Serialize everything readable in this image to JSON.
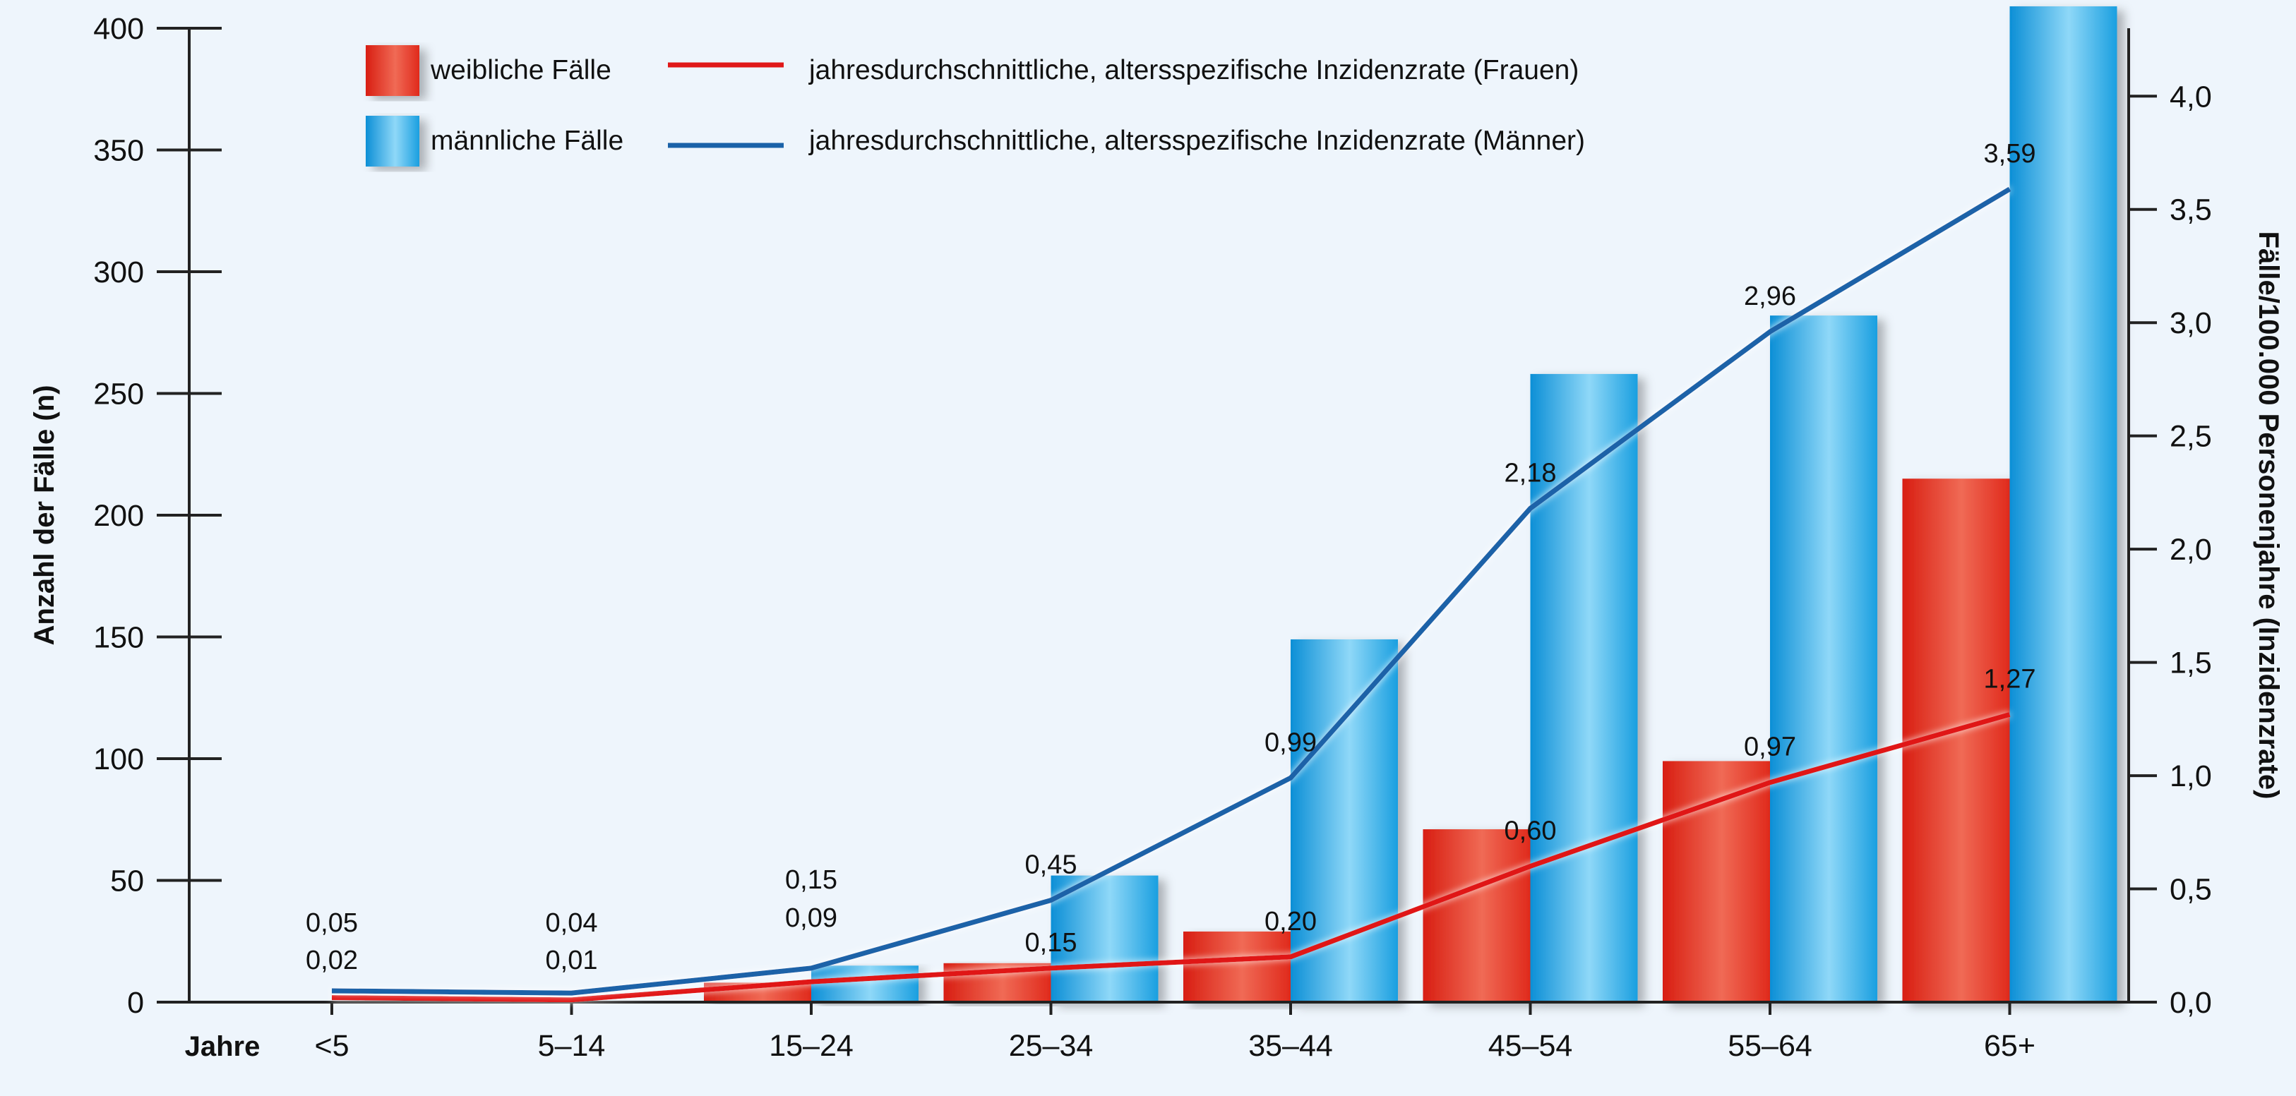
{
  "chart_data": {
    "type": "bar",
    "xlabel": "Jahre",
    "ylabel": "Anzahl der Fälle (n)",
    "ylabel_right": "Fälle/100.000 Personenjahre (Inzidenzrate)",
    "categories": [
      "<5",
      "5–14",
      "15–24",
      "25–34",
      "35–44",
      "45–54",
      "55–64",
      "65+"
    ],
    "ylim": [
      0,
      400
    ],
    "yticks": [
      "0",
      "50",
      "100",
      "150",
      "200",
      "250",
      "300",
      "350",
      "400"
    ],
    "ylim_right": [
      0,
      4.3
    ],
    "yticks_right": [
      "0,0",
      "0,5",
      "1,0",
      "1,5",
      "2,0",
      "2,5",
      "3,0",
      "3,5",
      "4,0"
    ],
    "bar_series": [
      {
        "name": "weibliche Fälle",
        "color": "#e32a1f",
        "values": [
          0,
          0,
          8,
          16,
          29,
          71,
          99,
          215
        ]
      },
      {
        "name": "männliche Fälle",
        "color": "#1aa3e0",
        "values": [
          0,
          0,
          15,
          52,
          149,
          258,
          282,
          409
        ]
      }
    ],
    "line_series": [
      {
        "name": "jahresdurchschnittliche, altersspezifische Inzidenzrate (Frauen)",
        "color": "#e01818",
        "values": [
          0.02,
          0.01,
          0.09,
          0.15,
          0.2,
          0.6,
          0.97,
          1.27
        ],
        "labels": [
          "0,02",
          "0,01",
          "0,09",
          "0,15",
          "0,20",
          "0,60",
          "0,97",
          "1,27"
        ]
      },
      {
        "name": "jahresdurchschnittliche, altersspezifische Inzidenzrate (Männer)",
        "color": "#1a62a8",
        "values": [
          0.05,
          0.04,
          0.15,
          0.45,
          0.99,
          2.18,
          2.96,
          3.59
        ],
        "labels": [
          "0,05",
          "0,04",
          "0,15",
          "0,45",
          "0,99",
          "2,18",
          "2,96",
          "3,59"
        ]
      }
    ],
    "legend_placement": "top",
    "grid": false
  }
}
